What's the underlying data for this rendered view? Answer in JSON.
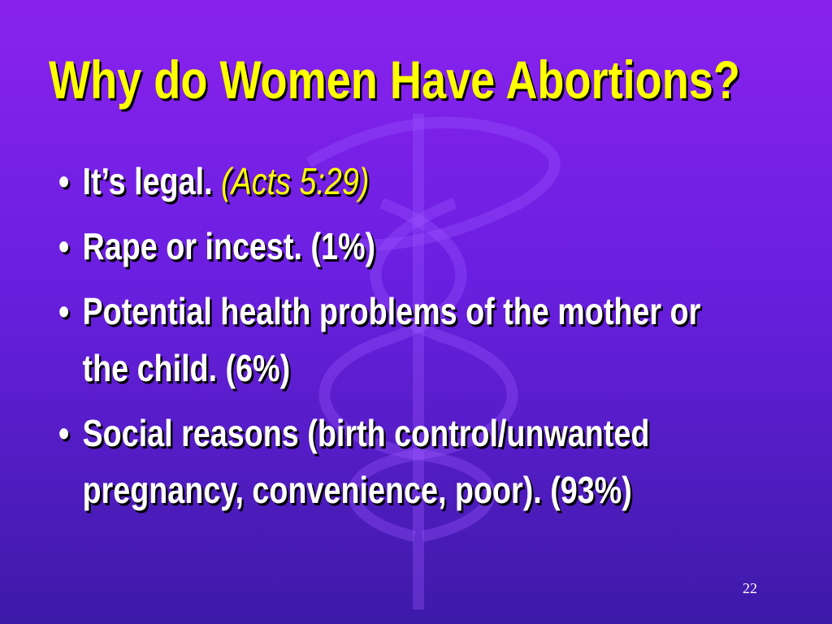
{
  "header": {
    "title": "Why do Women Have Abortions?"
  },
  "bullets": [
    {
      "parts": [
        "It’s legal.",
        "(Acts 5:29)"
      ]
    },
    {
      "parts": [
        "Rape or incest. (1%)"
      ]
    },
    {
      "parts": [
        "Potential health problems of the mother or the child. (6%)"
      ]
    },
    {
      "parts": [
        "Social reasons (birth control/unwanted pregnancy, convenience, poor). (93%)"
      ]
    }
  ],
  "footer": {
    "slide_number": "22"
  }
}
